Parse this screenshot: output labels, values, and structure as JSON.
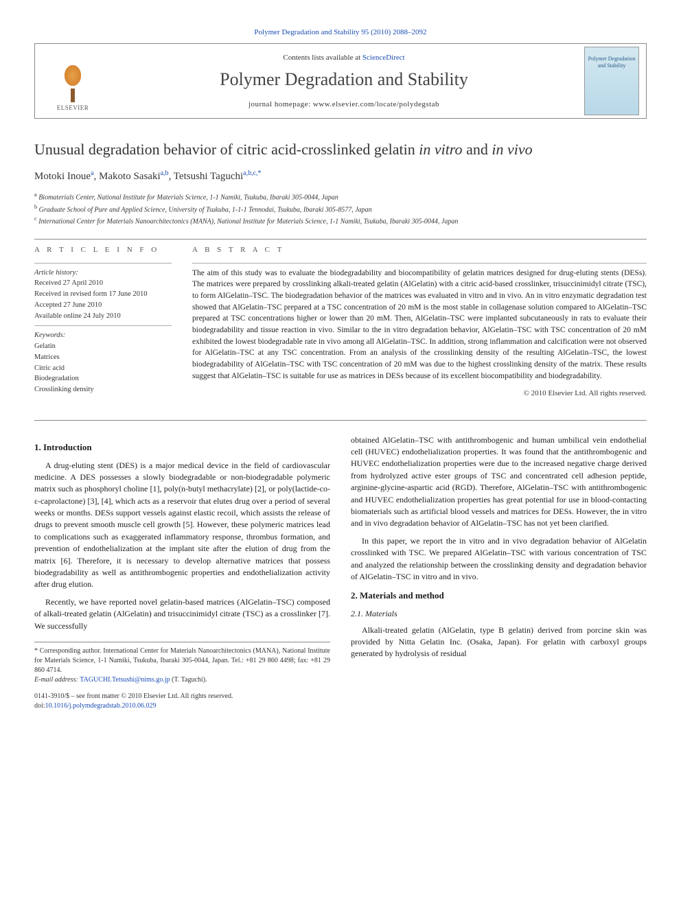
{
  "top_citation": "Polymer Degradation and Stability 95 (2010) 2088–2092",
  "banner": {
    "contents_prefix": "Contents lists available at ",
    "contents_link": "ScienceDirect",
    "journal_name": "Polymer Degradation and Stability",
    "homepage_label": "journal homepage: ",
    "homepage_url": "www.elsevier.com/locate/polydegstab",
    "publisher": "ELSEVIER",
    "cover_text": "Polymer Degradation and Stability"
  },
  "title": {
    "prefix": "Unusual degradation behavior of citric acid-crosslinked gelatin ",
    "italic1": "in vitro",
    "mid": " and ",
    "italic2": "in vivo"
  },
  "authors_line": "Motoki Inoue",
  "author1_sup": "a",
  "author2": ", Makoto Sasaki",
  "author2_sup": "a,b",
  "author3": ", Tetsushi Taguchi",
  "author3_sup": "a,b,c,*",
  "affiliations": {
    "a": "Biomaterials Center, National Institute for Materials Science, 1-1 Namiki, Tsukuba, Ibaraki 305-0044, Japan",
    "b": "Graduate School of Pure and Applied Science, University of Tsukuba, 1-1-1 Tennodai, Tsukuba, Ibaraki 305-8577, Japan",
    "c": "International Center for Materials Nanoarchitectonics (MANA), National Institute for Materials Science, 1-1 Namiki, Tsukuba, Ibaraki 305-0044, Japan"
  },
  "info": {
    "heading": "A R T I C L E   I N F O",
    "history_label": "Article history:",
    "received": "Received 27 April 2010",
    "revised": "Received in revised form 17 June 2010",
    "accepted": "Accepted 27 June 2010",
    "online": "Available online 24 July 2010",
    "keywords_label": "Keywords:",
    "keywords": [
      "Gelatin",
      "Matrices",
      "Citric acid",
      "Biodegradation",
      "Crosslinking density"
    ]
  },
  "abstract": {
    "heading": "A B S T R A C T",
    "text": "The aim of this study was to evaluate the biodegradability and biocompatibility of gelatin matrices designed for drug-eluting stents (DESs). The matrices were prepared by crosslinking alkali-treated gelatin (AlGelatin) with a citric acid-based crosslinker, trisuccinimidyl citrate (TSC), to form AlGelatin–TSC. The biodegradation behavior of the matrices was evaluated in vitro and in vivo. An in vitro enzymatic degradation test showed that AlGelatin–TSC prepared at a TSC concentration of 20 mM is the most stable in collagenase solution compared to AlGelatin–TSC prepared at TSC concentrations higher or lower than 20 mM. Then, AlGelatin–TSC were implanted subcutaneously in rats to evaluate their biodegradability and tissue reaction in vivo. Similar to the in vitro degradation behavior, AlGelatin–TSC with TSC concentration of 20 mM exhibited the lowest biodegradable rate in vivo among all AlGelatin–TSC. In addition, strong inflammation and calcification were not observed for AlGelatin–TSC at any TSC concentration. From an analysis of the crosslinking density of the resulting AlGelatin–TSC, the lowest biodegradability of AlGelatin–TSC with TSC concentration of 20 mM was due to the highest crosslinking density of the matrix. These results suggest that AlGelatin–TSC is suitable for use as matrices in DESs because of its excellent biocompatibility and biodegradability.",
    "copyright": "© 2010 Elsevier Ltd. All rights reserved."
  },
  "sections": {
    "intro_heading": "1. Introduction",
    "intro_p1": "A drug-eluting stent (DES) is a major medical device in the field of cardiovascular medicine. A DES possesses a slowly biodegradable or non-biodegradable polymeric matrix such as phosphoryl choline [1], poly(n-butyl methacrylate) [2], or poly(lactide-co-ε-caprolactone) [3], [4], which acts as a reservoir that elutes drug over a period of several weeks or months. DESs support vessels against elastic recoil, which assists the release of drugs to prevent smooth muscle cell growth [5]. However, these polymeric matrices lead to complications such as exaggerated inflammatory response, thrombus formation, and prevention of endothelialization at the implant site after the elution of drug from the matrix [6]. Therefore, it is necessary to develop alternative matrices that possess biodegradability as well as antithrombogenic properties and endothelialization activity after drug elution.",
    "intro_p2": "Recently, we have reported novel gelatin-based matrices (AlGelatin–TSC) composed of alkali-treated gelatin (AlGelatin) and trisuccinimidyl citrate (TSC) as a crosslinker [7]. We successfully",
    "col2_p1": "obtained AlGelatin–TSC with antithrombogenic and human umbilical vein endothelial cell (HUVEC) endothelialization properties. It was found that the antithrombogenic and HUVEC endothelialization properties were due to the increased negative charge derived from hydrolyzed active ester groups of TSC and concentrated cell adhesion peptide, arginine-glycine-aspartic acid (RGD). Therefore, AlGelatin–TSC with antithrombogenic and HUVEC endothelialization properties has great potential for use in blood-contacting biomaterials such as artificial blood vessels and matrices for DESs. However, the in vitro and in vivo degradation behavior of AlGelatin–TSC has not yet been clarified.",
    "col2_p2": "In this paper, we report the in vitro and in vivo degradation behavior of AlGelatin crosslinked with TSC. We prepared AlGelatin–TSC with various concentration of TSC and analyzed the relationship between the crosslinking density and degradation behavior of AlGelatin–TSC in vitro and in vivo.",
    "methods_heading": "2. Materials and method",
    "materials_heading": "2.1. Materials",
    "materials_p1": "Alkali-treated gelatin (AlGelatin, type B gelatin) derived from porcine skin was provided by Nitta Gelatin Inc. (Osaka, Japan). For gelatin with carboxyl groups generated by hydrolysis of residual"
  },
  "footnote": {
    "corresponding": "* Corresponding author. International Center for Materials Nanoarchitectonics (MANA), National Institute for Materials Science, 1-1 Namiki, Tsukuba, Ibaraki 305-0044, Japan. Tel.: +81 29 860 4498; fax: +81 29 860 4714.",
    "email_label": "E-mail address: ",
    "email": "TAGUCHI.Tetsushi@nims.go.jp",
    "email_suffix": " (T. Taguchi)."
  },
  "bottom": {
    "front_matter": "0141-3910/$ – see front matter © 2010 Elsevier Ltd. All rights reserved.",
    "doi_label": "doi:",
    "doi": "10.1016/j.polymdegradstab.2010.06.029"
  },
  "colors": {
    "link": "#1a4db3",
    "text": "#1a1a1a",
    "border": "#888888",
    "background": "#ffffff"
  },
  "typography": {
    "base_font": "Georgia, Times New Roman, serif",
    "title_fontsize": 22,
    "journal_name_fontsize": 26,
    "body_fontsize": 12,
    "abstract_fontsize": 11.5,
    "info_fontsize": 10.5,
    "footnote_fontsize": 10
  }
}
